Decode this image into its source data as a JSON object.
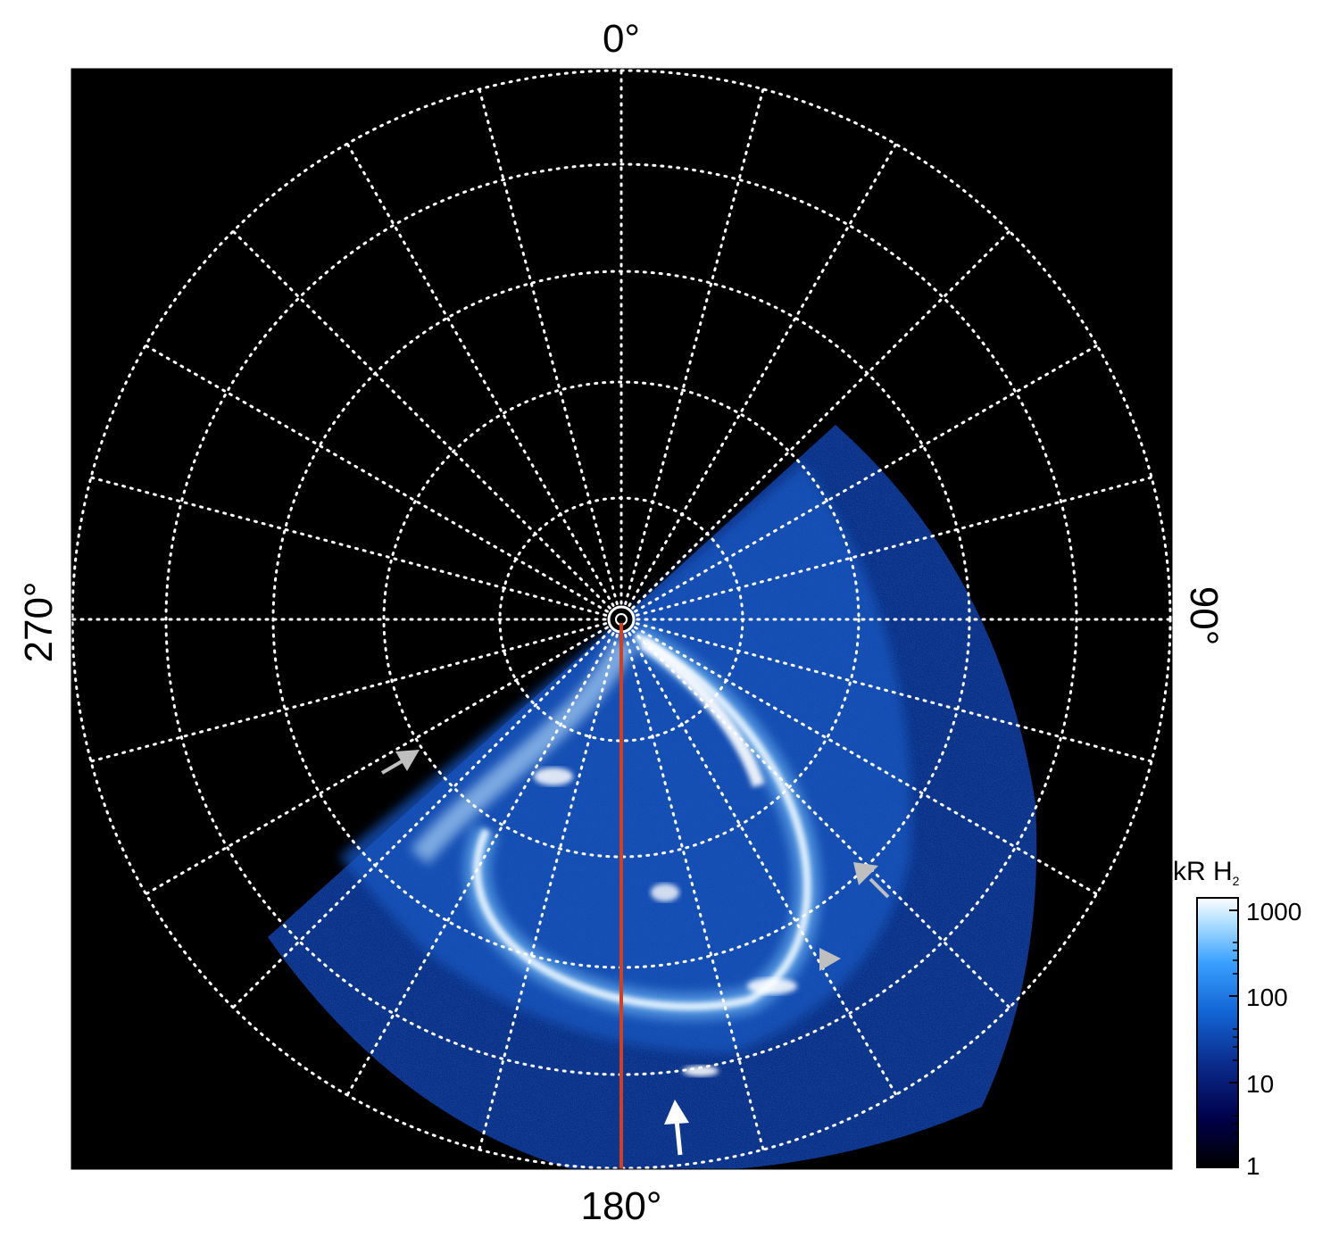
{
  "projection": "polar (south pole view)",
  "longitude_labels": {
    "top": "0°",
    "bottom": "180°",
    "left": "270°",
    "right": "90°"
  },
  "colorbar": {
    "label": "kR H",
    "label_subscript": "2",
    "scale": "log",
    "ticks": [
      "1000",
      "100",
      "10",
      "1"
    ],
    "colors": [
      "#000000",
      "#00004a",
      "#0a2a8a",
      "#1266d6",
      "#3aa0ff",
      "#a8dcff",
      "#ffffff"
    ]
  },
  "colors": {
    "grid": "#ffffff",
    "background": "#000000",
    "reference_meridian": "#d2401e",
    "arrow_gray": "#bfbfbf",
    "arrow_white": "#ffffff"
  },
  "annotations": {
    "arrows": [
      {
        "id": "gray-arrow-dusk",
        "color": "gray"
      },
      {
        "id": "gray-arrow-dawn-upper",
        "color": "gray"
      },
      {
        "id": "gray-arrowhead-dawn-lower",
        "color": "gray"
      },
      {
        "id": "white-arrow-bottom",
        "color": "white"
      }
    ]
  }
}
